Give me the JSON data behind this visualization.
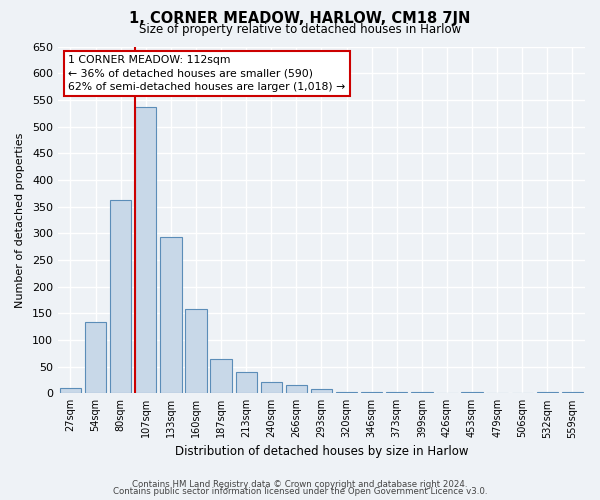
{
  "title": "1, CORNER MEADOW, HARLOW, CM18 7JN",
  "subtitle": "Size of property relative to detached houses in Harlow",
  "xlabel": "Distribution of detached houses by size in Harlow",
  "ylabel": "Number of detached properties",
  "bar_labels": [
    "27sqm",
    "54sqm",
    "80sqm",
    "107sqm",
    "133sqm",
    "160sqm",
    "187sqm",
    "213sqm",
    "240sqm",
    "266sqm",
    "293sqm",
    "320sqm",
    "346sqm",
    "373sqm",
    "399sqm",
    "426sqm",
    "453sqm",
    "479sqm",
    "506sqm",
    "532sqm",
    "559sqm"
  ],
  "bar_values": [
    10,
    133,
    363,
    537,
    293,
    158,
    65,
    40,
    22,
    15,
    8,
    2,
    2,
    2,
    2,
    0,
    3,
    0,
    0,
    2,
    2
  ],
  "bar_color": "#c8d8e8",
  "bar_edge_color": "#5b8db8",
  "vline_color": "#cc0000",
  "annotation_title": "1 CORNER MEADOW: 112sqm",
  "annotation_line1": "← 36% of detached houses are smaller (590)",
  "annotation_line2": "62% of semi-detached houses are larger (1,018) →",
  "annotation_box_color": "#ffffff",
  "annotation_box_edge": "#cc0000",
  "ylim": [
    0,
    650
  ],
  "yticks": [
    0,
    50,
    100,
    150,
    200,
    250,
    300,
    350,
    400,
    450,
    500,
    550,
    600,
    650
  ],
  "footer1": "Contains HM Land Registry data © Crown copyright and database right 2024.",
  "footer2": "Contains public sector information licensed under the Open Government Licence v3.0.",
  "bg_color": "#eef2f6",
  "plot_bg_color": "#eef2f6",
  "grid_color": "#ffffff"
}
